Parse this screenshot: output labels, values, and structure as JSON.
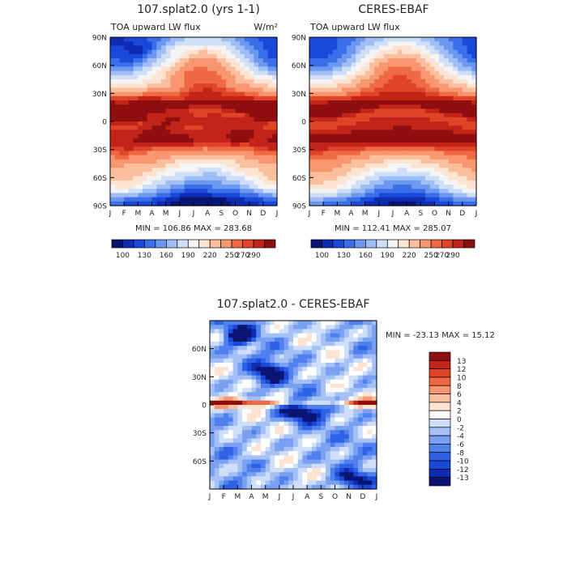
{
  "colors": {
    "ceres_scale": [
      "#0a1472",
      "#0f2cb0",
      "#1a48d8",
      "#3a6fea",
      "#6d98f0",
      "#9fbef5",
      "#cfdff7",
      "#f4f4f4",
      "#fde3d2",
      "#fbbf9d",
      "#f7966f",
      "#ef6a44",
      "#e04426",
      "#c2241a",
      "#8f0f10"
    ],
    "diff_scale": [
      "#0a1472",
      "#0f2cb0",
      "#1a48d8",
      "#2f62e6",
      "#4f80ee",
      "#7aa0f2",
      "#a5c0f5",
      "#cfdff9",
      "#ffffff",
      "#fde3d2",
      "#fbbf9d",
      "#f7966f",
      "#ef6a44",
      "#e04426",
      "#c2241a",
      "#8f0f10"
    ]
  },
  "chart_data": [
    {
      "type": "heatmap",
      "title": "107.splat2.0 (yrs 1-1)",
      "subtitle": "TOA upward LW flux",
      "units": "W/m²",
      "x_ticks": [
        "J",
        "F",
        "M",
        "A",
        "M",
        "J",
        "J",
        "A",
        "S",
        "O",
        "N",
        "D",
        "J"
      ],
      "y_ticks": [
        "90N",
        "60N",
        "30N",
        "0",
        "30S",
        "60S",
        "90S"
      ],
      "stats": "MIN = 106.86  MAX = 283.68",
      "colorbar_labels": [
        "100",
        "130",
        "160",
        "190",
        "220",
        "250",
        "270",
        "290"
      ],
      "ylim": [
        -90,
        90
      ],
      "grid": false,
      "field": "model"
    },
    {
      "type": "heatmap",
      "title": "CERES-EBAF",
      "subtitle": "TOA upward LW flux",
      "x_ticks": [
        "J",
        "F",
        "M",
        "A",
        "M",
        "J",
        "J",
        "A",
        "S",
        "O",
        "N",
        "D",
        "J"
      ],
      "y_ticks": [
        "90N",
        "60N",
        "30N",
        "0",
        "30S",
        "60S",
        "90S"
      ],
      "stats": "MIN = 112.41  MAX = 285.07",
      "colorbar_labels": [
        "100",
        "130",
        "160",
        "190",
        "220",
        "250",
        "270",
        "290"
      ],
      "ylim": [
        -90,
        90
      ],
      "grid": false,
      "field": "obs"
    },
    {
      "type": "heatmap",
      "title": "107.splat2.0 - CERES-EBAF",
      "x_ticks": [
        "J",
        "F",
        "M",
        "A",
        "M",
        "J",
        "J",
        "A",
        "S",
        "O",
        "N",
        "D",
        "J"
      ],
      "y_ticks": [
        "60N",
        "30N",
        "0",
        "30S",
        "60S"
      ],
      "stats": "MIN = -23.13 MAX =  15.12",
      "colorbar_labels": [
        "13",
        "12",
        "10",
        "8",
        "6",
        "4",
        "2",
        "0",
        "-2",
        "-4",
        "-6",
        "-8",
        "-10",
        "-12",
        "-13"
      ],
      "ylim": [
        -90,
        90
      ],
      "grid": false,
      "field": "diff"
    }
  ]
}
